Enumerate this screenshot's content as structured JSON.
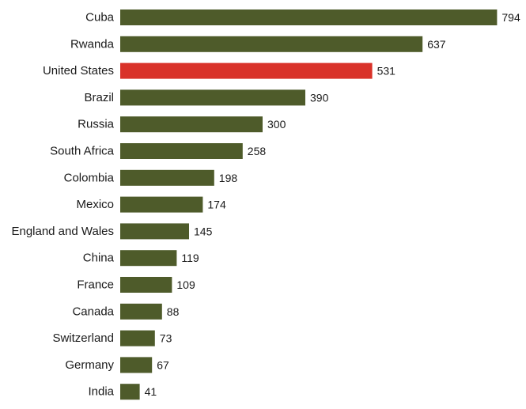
{
  "chart_data": {
    "type": "bar",
    "orientation": "horizontal",
    "categories": [
      "Cuba",
      "Rwanda",
      "United States",
      "Brazil",
      "Russia",
      "South Africa",
      "Colombia",
      "Mexico",
      "England and Wales",
      "China",
      "France",
      "Canada",
      "Switzerland",
      "Germany",
      "India"
    ],
    "values": [
      794,
      637,
      531,
      390,
      300,
      258,
      198,
      174,
      145,
      119,
      109,
      88,
      73,
      67,
      41
    ],
    "title": "",
    "xlabel": "",
    "ylabel": "",
    "xlim": [
      0,
      800
    ],
    "grid": false,
    "legend": "none",
    "colors": {
      "default": "#4e5b2a",
      "highlight": "#d93229"
    },
    "highlight_category": "United States"
  }
}
